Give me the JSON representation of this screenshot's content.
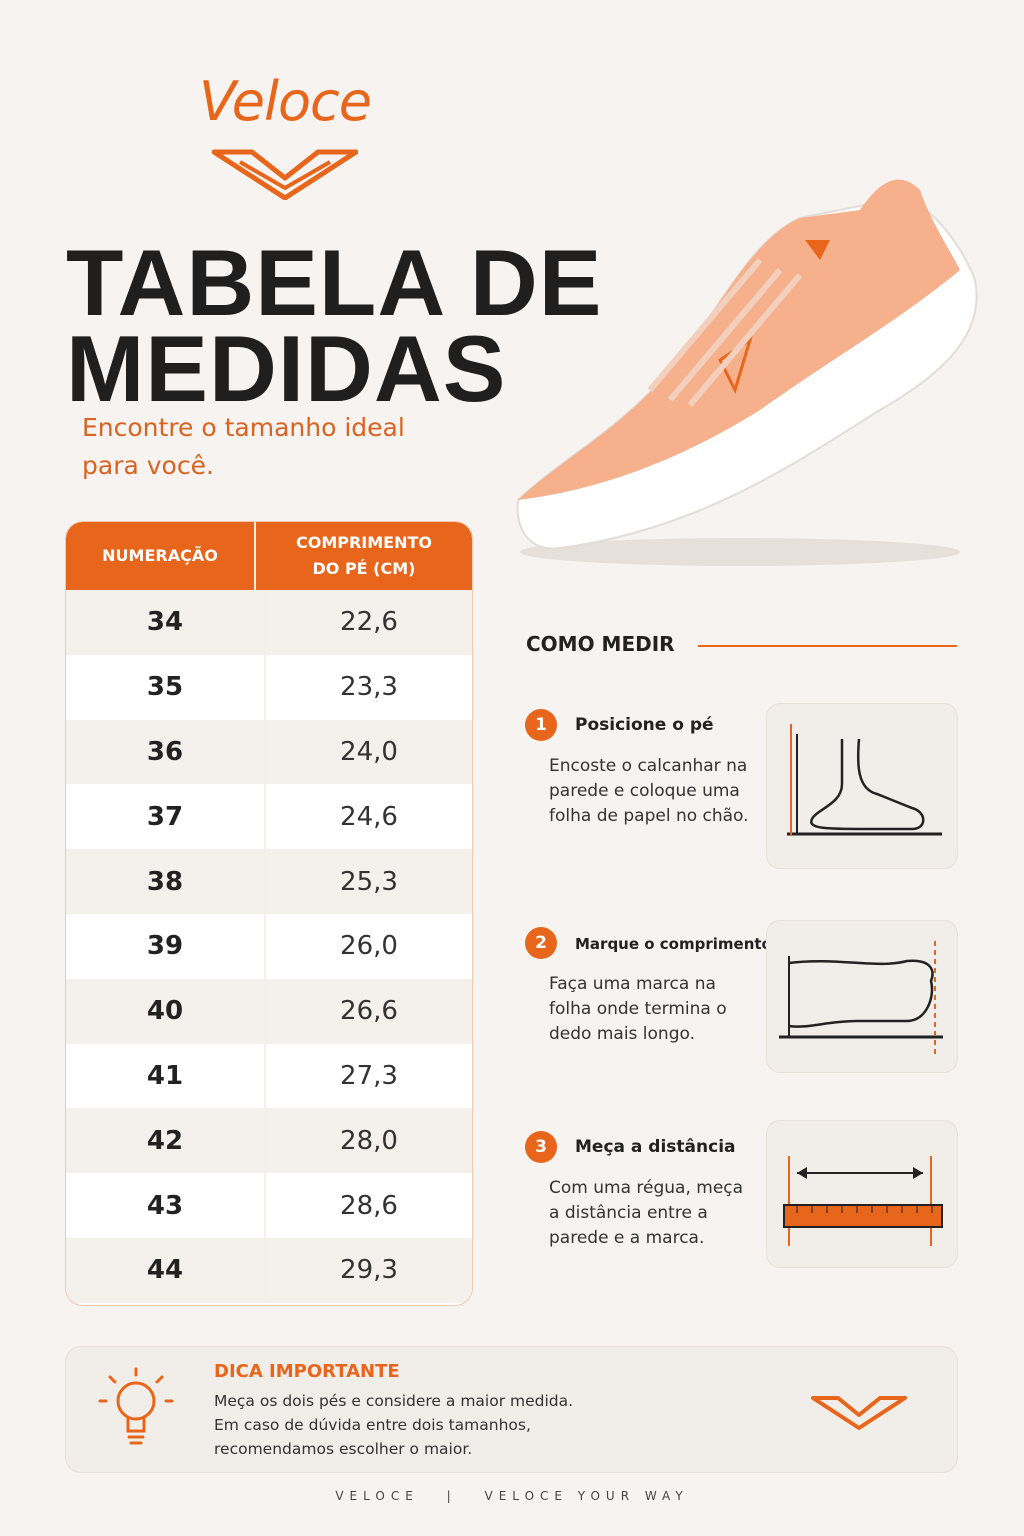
{
  "header": {
    "brand": "Veloce",
    "title_lines": [
      "TABELA DE",
      "MEDIDAS"
    ],
    "subtitle_lines": [
      "Encontre o tamanho ideal",
      "para você."
    ]
  },
  "table": {
    "headers": [
      "NUMERAÇÃO",
      "COMPRIMENTO DO PÉ (CM)"
    ],
    "rows": [
      [
        "34",
        "22,6"
      ],
      [
        "35",
        "23,3"
      ],
      [
        "36",
        "24,0"
      ],
      [
        "37",
        "24,6"
      ],
      [
        "38",
        "25,3"
      ],
      [
        "39",
        "26,0"
      ],
      [
        "40",
        "26,6"
      ],
      [
        "41",
        "27,3"
      ],
      [
        "42",
        "28,0"
      ],
      [
        "43",
        "28,6"
      ],
      [
        "44",
        "29,3"
      ]
    ]
  },
  "how_to": {
    "title": "COMO MEDIR",
    "steps": [
      {
        "number": "1",
        "title": "Posicione o pé",
        "text": "Encoste o calcanhar na parede e coloque uma folha de papel no chão."
      },
      {
        "number": "2",
        "title": "Marque o comprimento",
        "text": "Faça uma marca na folha onde termina o dedo mais longo."
      },
      {
        "number": "3",
        "title": "Meça a distância",
        "text": "Com uma régua, meça a distância entre a parede e a marca."
      }
    ]
  },
  "tip": {
    "title": "DICA IMPORTANTE",
    "lines": [
      "Meça os dois pés e considere a maior medida.",
      "Em caso de dúvida entre dois tamanhos,",
      "recomendamos escolher o maior."
    ]
  },
  "footer": {
    "left": "VELOCE",
    "separator": "|",
    "right": "VELOCE YOUR WAY"
  }
}
